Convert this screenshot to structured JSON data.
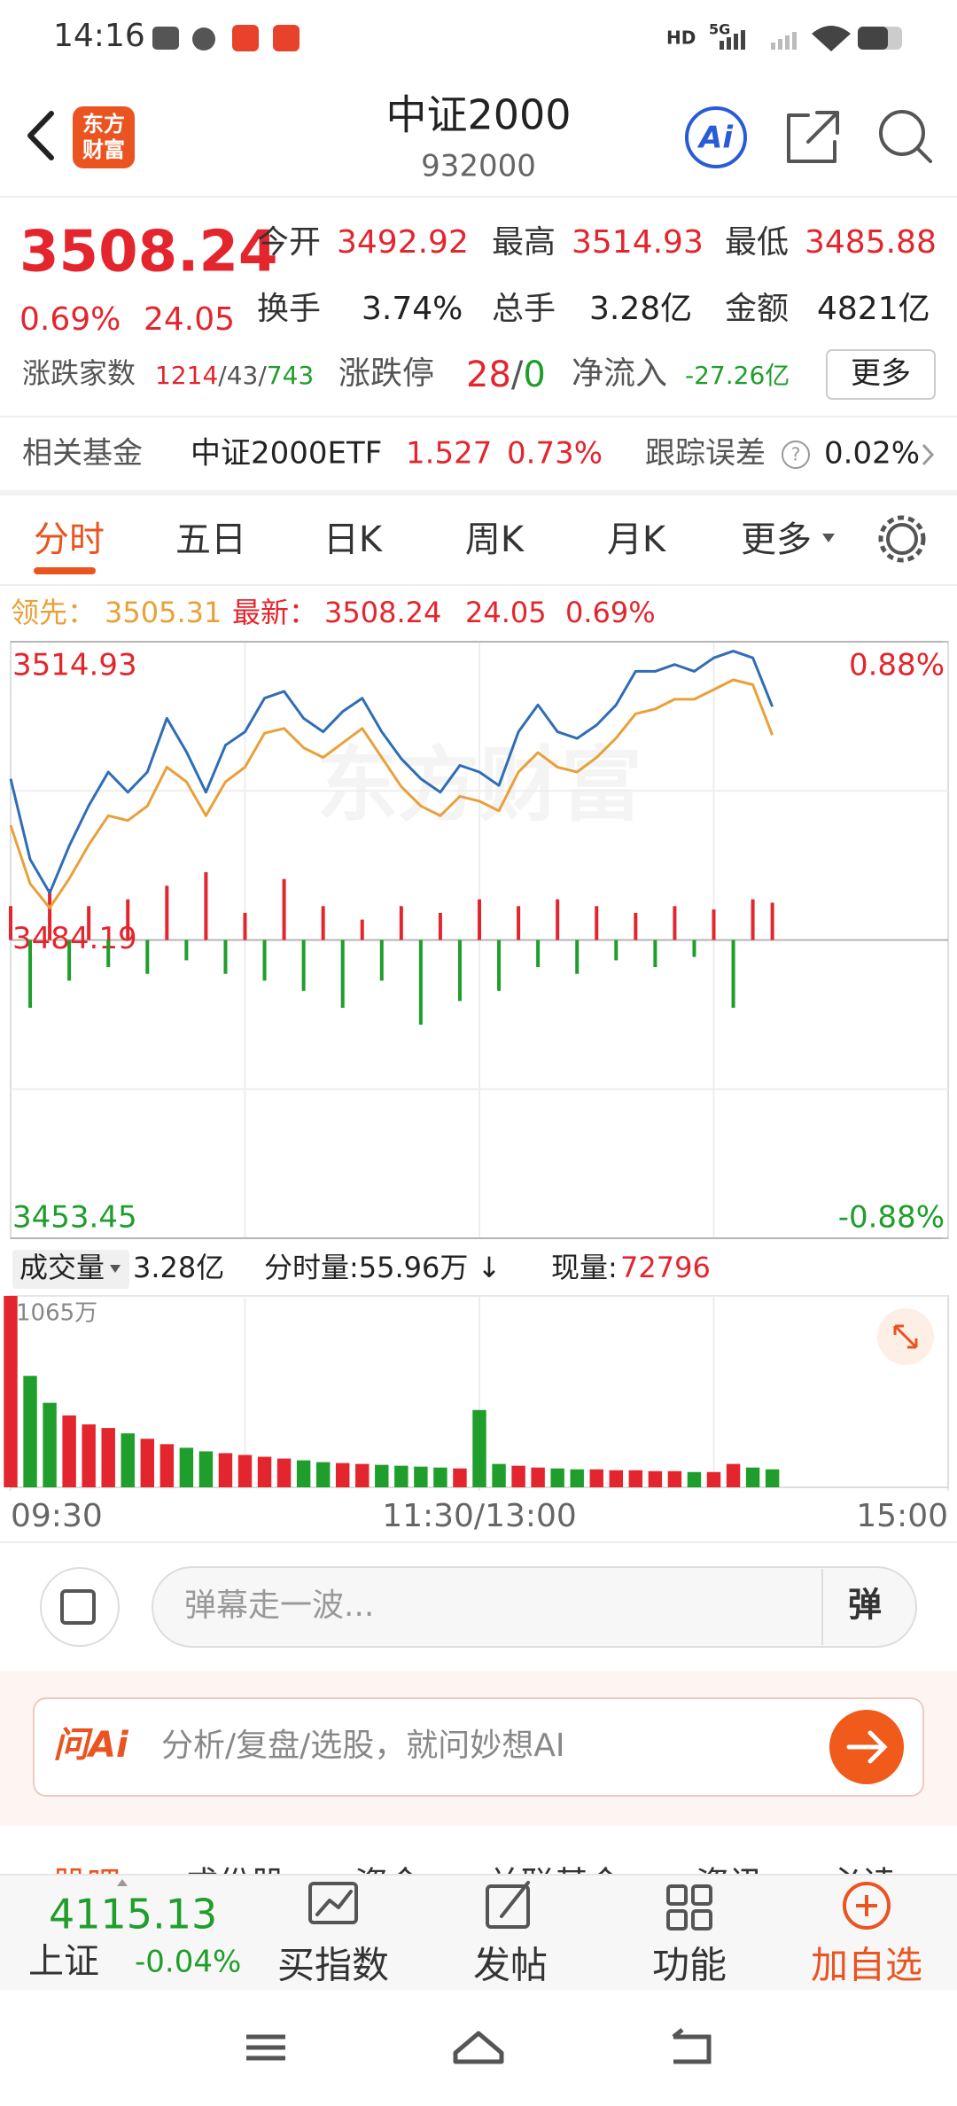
{
  "status_bar": {
    "time": "14:16",
    "hd": "HD",
    "signal": "5G"
  },
  "header": {
    "logo": [
      "东方",
      "财富"
    ],
    "title": "中证2000",
    "code": "932000",
    "ai": "Ai"
  },
  "quote": {
    "price": "3508.24",
    "change_pct": "0.69%",
    "change": "24.05",
    "stats": [
      [
        "今开",
        "3492.92"
      ],
      [
        "最高",
        "3514.93"
      ],
      [
        "最低",
        "3485.88"
      ],
      [
        "换手",
        "3.74%"
      ],
      [
        "总手",
        "3.28亿"
      ],
      [
        "金额",
        "4821亿"
      ]
    ],
    "breadth_label": "涨跌家数",
    "breadth_up": "1214",
    "breadth_flat": "/43/",
    "breadth_down": "743",
    "limit_label": "涨跌停",
    "limit_up": "28",
    "limit_sep": "/",
    "limit_down": "0",
    "inflow_label": "净流入",
    "inflow": "-27.26亿",
    "more": "更多"
  },
  "fund": {
    "label": "相关基金",
    "name": "中证2000ETF",
    "price": "1.527",
    "change_pct": "0.73%",
    "tracking_label": "跟踪误差",
    "help": "?",
    "tracking": "0.02%"
  },
  "tabs": [
    "分时",
    "五日",
    "日K",
    "周K",
    "月K",
    "更多"
  ],
  "info": {
    "change": "24.05",
    "change_pct": "0.69%"
  },
  "watermark": "东方财富",
  "chart_data": [
    {
      "type": "line",
      "x": [
        0,
        5,
        10,
        15,
        20,
        25,
        30,
        35,
        40,
        45,
        50,
        55,
        60,
        65,
        70,
        75,
        80,
        85,
        90,
        95,
        100,
        105,
        110,
        115,
        120,
        125,
        130,
        135,
        140,
        145,
        150,
        155,
        160,
        165,
        170,
        175,
        180,
        185,
        190,
        195
      ],
      "xlim": [
        0,
        240
      ],
      "ylim": [
        3453.45,
        3514.93
      ],
      "yticks": [
        3514.93,
        3484.19,
        3453.45
      ],
      "y2lim": [
        -0.88,
        0.88
      ],
      "y2ticks": [
        {
          "value": 0.88,
          "label": "0.88%"
        },
        {
          "value": -0.88,
          "label": "-0.88%"
        }
      ],
      "up_color": "#e3262d",
      "down_color": "#1f9e2b",
      "grid": true,
      "series": [
        {
          "name": "最新：",
          "color": "#2f6db5",
          "values": [
            3500.81,
            3492.5,
            3489.04,
            3493.88,
            3498.04,
            3501.5,
            3499.42,
            3501.5,
            3507.04,
            3503.58,
            3499.42,
            3504.27,
            3505.65,
            3509.11,
            3509.81,
            3507.04,
            3505.65,
            3507.73,
            3509.11,
            3505.65,
            3502.88,
            3500.81,
            3499.42,
            3502.19,
            3501.5,
            3500.11,
            3505.65,
            3508.42,
            3505.65,
            3504.96,
            3506.34,
            3508.42,
            3511.88,
            3511.88,
            3512.58,
            3511.88,
            3513.27,
            3513.96,
            3513.27,
            3508.24
          ]
        },
        {
          "name": "领先：",
          "color": "#e9a03a",
          "values": [
            3496,
            3490,
            3487.5,
            3490.5,
            3494,
            3497,
            3496.5,
            3498,
            3502,
            3500.5,
            3497,
            3500.5,
            3502,
            3505.5,
            3506,
            3504,
            3503,
            3504.5,
            3506,
            3503,
            3500,
            3498,
            3497,
            3499,
            3498.5,
            3497.5,
            3501.5,
            3503.5,
            3502,
            3501.5,
            3503,
            3505,
            3507.5,
            3508,
            3509,
            3509,
            3510,
            3511,
            3510.5,
            3505.31
          ]
        }
      ],
      "flow": {
        "axis": "y2",
        "values": [
          0.1,
          -0.2,
          0.15,
          -0.12,
          0.1,
          -0.08,
          0.12,
          -0.1,
          0.16,
          -0.06,
          0.2,
          -0.1,
          0.08,
          -0.12,
          0.18,
          -0.15,
          0.1,
          -0.2,
          0.06,
          -0.12,
          0.1,
          -0.25,
          0.08,
          -0.18,
          0.12,
          -0.15,
          0.1,
          -0.08,
          0.12,
          -0.1,
          0.1,
          -0.06,
          0.08,
          -0.08,
          0.1,
          -0.05,
          0.09,
          -0.2,
          0.12,
          0.11
        ]
      }
    },
    {
      "type": "bar",
      "toolbar": {
        "label": "成交量",
        "total": "3.28亿",
        "minute": "分时量:55.96万 ↓",
        "current_label": "现量:",
        "current": "72796"
      },
      "x": [
        0,
        5,
        10,
        15,
        20,
        25,
        30,
        35,
        40,
        45,
        50,
        55,
        60,
        65,
        70,
        75,
        80,
        85,
        90,
        95,
        100,
        105,
        110,
        115,
        120,
        125,
        130,
        135,
        140,
        145,
        150,
        155,
        160,
        165,
        170,
        175,
        180,
        185,
        190,
        195
      ],
      "values": [
        1065,
        620,
        470,
        400,
        350,
        330,
        300,
        270,
        240,
        220,
        200,
        190,
        180,
        170,
        160,
        150,
        140,
        135,
        130,
        125,
        120,
        115,
        110,
        105,
        430,
        130,
        120,
        110,
        105,
        100,
        100,
        95,
        95,
        90,
        90,
        85,
        85,
        130,
        110,
        100
      ],
      "xlim": [
        0,
        240
      ],
      "ylim": [
        0,
        1065
      ],
      "yticks": [
        {
          "value": 1065,
          "label": "1065万"
        }
      ],
      "xticks": [
        {
          "value": 0,
          "label": "09:30"
        },
        {
          "value": 120,
          "label": "11:30/13:00"
        },
        {
          "value": 240,
          "label": "15:00"
        }
      ]
    }
  ],
  "barrage": {
    "placeholder": "弹幕走一波...",
    "button": "弹"
  },
  "ask_ai": {
    "brand": "问Ai",
    "placeholder": "分析/复盘/选股，就问妙想AI"
  },
  "sections": [
    "股吧",
    "成份股",
    "资金",
    "关联基金",
    "资讯",
    "必读"
  ],
  "bottom_nav": {
    "index_value": "4115.13",
    "index_name": "上证",
    "index_change": "-0.04%",
    "items": [
      "买指数",
      "发帖",
      "功能",
      "加自选"
    ]
  }
}
